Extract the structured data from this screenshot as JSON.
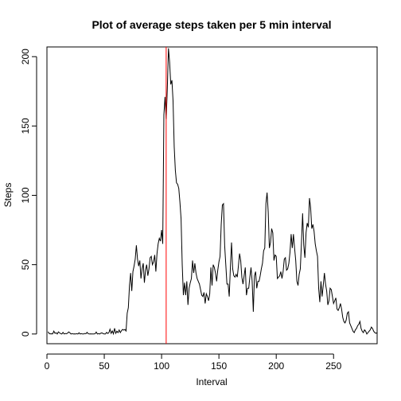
{
  "chart_data": {
    "type": "line",
    "title": "Plot of average steps taken per 5 min interval",
    "xlabel": "Interval",
    "ylabel": "Steps",
    "xlim": [
      0,
      288
    ],
    "ylim": [
      -7,
      207
    ],
    "xticks": [
      0,
      50,
      100,
      150,
      200,
      250
    ],
    "yticks": [
      0,
      50,
      100,
      150,
      200
    ],
    "grid": false,
    "series": [
      {
        "color": "#000000",
        "points": [
          [
            1,
            1.7
          ],
          [
            2,
            0.3
          ],
          [
            3,
            0.1
          ],
          [
            4,
            0.2
          ],
          [
            5,
            0.1
          ],
          [
            6,
            2.1
          ],
          [
            7,
            0.5
          ],
          [
            8,
            0.9
          ],
          [
            9,
            0
          ],
          [
            10,
            1.5
          ],
          [
            11,
            0.8
          ],
          [
            12,
            0.3
          ],
          [
            13,
            0
          ],
          [
            14,
            1.2
          ],
          [
            15,
            0
          ],
          [
            16,
            0.4
          ],
          [
            17,
            0.2
          ],
          [
            18,
            0.6
          ],
          [
            19,
            1.5
          ],
          [
            20,
            0.9
          ],
          [
            21,
            0
          ],
          [
            22,
            0.3
          ],
          [
            23,
            0
          ],
          [
            24,
            0.1
          ],
          [
            25,
            0
          ],
          [
            26,
            0.2
          ],
          [
            27,
            0
          ],
          [
            28,
            0.9
          ],
          [
            29,
            0
          ],
          [
            30,
            0.3
          ],
          [
            31,
            0
          ],
          [
            32,
            0
          ],
          [
            33,
            0.4
          ],
          [
            34,
            0.2
          ],
          [
            35,
            1.2
          ],
          [
            36,
            0.2
          ],
          [
            37,
            0
          ],
          [
            38,
            0.1
          ],
          [
            39,
            0
          ],
          [
            40,
            0
          ],
          [
            41,
            0
          ],
          [
            42,
            0.2
          ],
          [
            43,
            1.4
          ],
          [
            44,
            0
          ],
          [
            45,
            0.3
          ],
          [
            46,
            0
          ],
          [
            47,
            0.6
          ],
          [
            48,
            0.8
          ],
          [
            49,
            0.3
          ],
          [
            50,
            0
          ],
          [
            51,
            0
          ],
          [
            52,
            1.2
          ],
          [
            53,
            0.4
          ],
          [
            54,
            0.9
          ],
          [
            55,
            3.5
          ],
          [
            56,
            0.5
          ],
          [
            57,
            2.2
          ],
          [
            58,
            0.1
          ],
          [
            59,
            4.1
          ],
          [
            60,
            0.5
          ],
          [
            61,
            2
          ],
          [
            62,
            1
          ],
          [
            63,
            2.9
          ],
          [
            64,
            1
          ],
          [
            65,
            2.4
          ],
          [
            66,
            3.3
          ],
          [
            67,
            2.8
          ],
          [
            68,
            3.3
          ],
          [
            69,
            2.2
          ],
          [
            70,
            15
          ],
          [
            71,
            19
          ],
          [
            72,
            35
          ],
          [
            73,
            44
          ],
          [
            74,
            31
          ],
          [
            75,
            45
          ],
          [
            76,
            49
          ],
          [
            77,
            54
          ],
          [
            78,
            64
          ],
          [
            79,
            54
          ],
          [
            80,
            49
          ],
          [
            81,
            53
          ],
          [
            82,
            40
          ],
          [
            83,
            47
          ],
          [
            84,
            51
          ],
          [
            85,
            37
          ],
          [
            86,
            46
          ],
          [
            87,
            50
          ],
          [
            88,
            42
          ],
          [
            89,
            47
          ],
          [
            90,
            55
          ],
          [
            91,
            56
          ],
          [
            92,
            50
          ],
          [
            93,
            52
          ],
          [
            94,
            57
          ],
          [
            95,
            45
          ],
          [
            96,
            58
          ],
          [
            97,
            65
          ],
          [
            98,
            69
          ],
          [
            99,
            67
          ],
          [
            100,
            75
          ],
          [
            101,
            65
          ],
          [
            102,
            158
          ],
          [
            103,
            171
          ],
          [
            104,
            155
          ],
          [
            105,
            177
          ],
          [
            106,
            206
          ],
          [
            107,
            196
          ],
          [
            108,
            180
          ],
          [
            109,
            183
          ],
          [
            110,
            168
          ],
          [
            111,
            135
          ],
          [
            112,
            118
          ],
          [
            113,
            109
          ],
          [
            114,
            108
          ],
          [
            115,
            105
          ],
          [
            116,
            95
          ],
          [
            117,
            83
          ],
          [
            118,
            50
          ],
          [
            119,
            28
          ],
          [
            120,
            37
          ],
          [
            121,
            28
          ],
          [
            122,
            38
          ],
          [
            123,
            21
          ],
          [
            124,
            33
          ],
          [
            125,
            37
          ],
          [
            126,
            40
          ],
          [
            127,
            53
          ],
          [
            128,
            44
          ],
          [
            129,
            51
          ],
          [
            130,
            44
          ],
          [
            131,
            40
          ],
          [
            132,
            38
          ],
          [
            133,
            36
          ],
          [
            134,
            32
          ],
          [
            135,
            28
          ],
          [
            136,
            27
          ],
          [
            137,
            30
          ],
          [
            138,
            22
          ],
          [
            139,
            29
          ],
          [
            140,
            27
          ],
          [
            141,
            24
          ],
          [
            142,
            29
          ],
          [
            143,
            48
          ],
          [
            144,
            35
          ],
          [
            145,
            50
          ],
          [
            146,
            48
          ],
          [
            147,
            44
          ],
          [
            148,
            38
          ],
          [
            149,
            46
          ],
          [
            150,
            52
          ],
          [
            151,
            56
          ],
          [
            152,
            79
          ],
          [
            153,
            93
          ],
          [
            154,
            94
          ],
          [
            155,
            64
          ],
          [
            156,
            50
          ],
          [
            157,
            36
          ],
          [
            158,
            36
          ],
          [
            159,
            27
          ],
          [
            160,
            48
          ],
          [
            161,
            66
          ],
          [
            162,
            47
          ],
          [
            163,
            42
          ],
          [
            164,
            41
          ],
          [
            165,
            43
          ],
          [
            166,
            41
          ],
          [
            167,
            49
          ],
          [
            168,
            58
          ],
          [
            169,
            53
          ],
          [
            170,
            41
          ],
          [
            171,
            36
          ],
          [
            172,
            42
          ],
          [
            173,
            48
          ],
          [
            174,
            28
          ],
          [
            175,
            33
          ],
          [
            176,
            33
          ],
          [
            177,
            41
          ],
          [
            178,
            48
          ],
          [
            179,
            38
          ],
          [
            180,
            16
          ],
          [
            181,
            42
          ],
          [
            182,
            45
          ],
          [
            183,
            33
          ],
          [
            184,
            38
          ],
          [
            185,
            38
          ],
          [
            186,
            42
          ],
          [
            187,
            47
          ],
          [
            188,
            51
          ],
          [
            189,
            60
          ],
          [
            190,
            62
          ],
          [
            191,
            94
          ],
          [
            192,
            102
          ],
          [
            193,
            88
          ],
          [
            194,
            62
          ],
          [
            195,
            66
          ],
          [
            196,
            76
          ],
          [
            197,
            73
          ],
          [
            198,
            53
          ],
          [
            199,
            57
          ],
          [
            200,
            56
          ],
          [
            201,
            40
          ],
          [
            202,
            41
          ],
          [
            203,
            42
          ],
          [
            204,
            45
          ],
          [
            205,
            40
          ],
          [
            206,
            45
          ],
          [
            207,
            54
          ],
          [
            208,
            55
          ],
          [
            209,
            46
          ],
          [
            210,
            47
          ],
          [
            211,
            51
          ],
          [
            212,
            59
          ],
          [
            213,
            72
          ],
          [
            214,
            62
          ],
          [
            215,
            72
          ],
          [
            216,
            62
          ],
          [
            217,
            53
          ],
          [
            218,
            38
          ],
          [
            219,
            35
          ],
          [
            220,
            43
          ],
          [
            221,
            47
          ],
          [
            222,
            66
          ],
          [
            223,
            87
          ],
          [
            224,
            64
          ],
          [
            225,
            55
          ],
          [
            226,
            73
          ],
          [
            227,
            80
          ],
          [
            228,
            77
          ],
          [
            229,
            98
          ],
          [
            230,
            91
          ],
          [
            231,
            76
          ],
          [
            232,
            79
          ],
          [
            233,
            74
          ],
          [
            234,
            65
          ],
          [
            235,
            60
          ],
          [
            236,
            56
          ],
          [
            237,
            33
          ],
          [
            238,
            23
          ],
          [
            239,
            38
          ],
          [
            240,
            27
          ],
          [
            241,
            35
          ],
          [
            242,
            44
          ],
          [
            243,
            36
          ],
          [
            244,
            31
          ],
          [
            245,
            21
          ],
          [
            246,
            24
          ],
          [
            247,
            33
          ],
          [
            248,
            32
          ],
          [
            249,
            27
          ],
          [
            250,
            22
          ],
          [
            251,
            24
          ],
          [
            252,
            26
          ],
          [
            253,
            18
          ],
          [
            254,
            17
          ],
          [
            255,
            19
          ],
          [
            256,
            22
          ],
          [
            257,
            18
          ],
          [
            258,
            12
          ],
          [
            259,
            9
          ],
          [
            260,
            8
          ],
          [
            261,
            10
          ],
          [
            262,
            15
          ],
          [
            263,
            16
          ],
          [
            264,
            8
          ],
          [
            265,
            6
          ],
          [
            266,
            4
          ],
          [
            267,
            2
          ],
          [
            268,
            1
          ],
          [
            269,
            3
          ],
          [
            270,
            4
          ],
          [
            271,
            6
          ],
          [
            272,
            7
          ],
          [
            273,
            9
          ],
          [
            274,
            4
          ],
          [
            275,
            2
          ],
          [
            276,
            1
          ],
          [
            277,
            3
          ],
          [
            278,
            2
          ],
          [
            279,
            0
          ],
          [
            280,
            1
          ],
          [
            281,
            2
          ],
          [
            282,
            3
          ],
          [
            283,
            5
          ],
          [
            284,
            4
          ],
          [
            285,
            2
          ],
          [
            286,
            1
          ],
          [
            287,
            0.5
          ],
          [
            288,
            1
          ]
        ]
      }
    ],
    "annotations": [
      {
        "type": "vline",
        "x": 104,
        "color": "#ff0000"
      }
    ]
  }
}
